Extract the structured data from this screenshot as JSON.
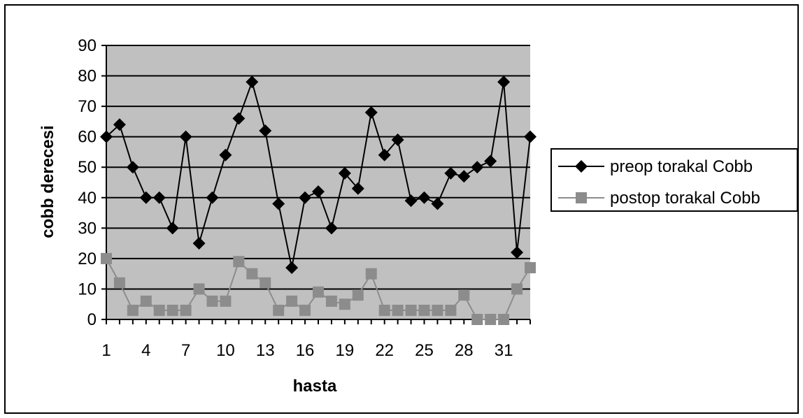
{
  "chart_data": {
    "type": "line",
    "title": "",
    "xlabel": "hasta",
    "ylabel": "cobb derecesi",
    "x": [
      1,
      2,
      3,
      4,
      5,
      6,
      7,
      8,
      9,
      10,
      11,
      12,
      13,
      14,
      15,
      16,
      17,
      18,
      19,
      20,
      21,
      22,
      23,
      24,
      25,
      26,
      27,
      28,
      29,
      30,
      31,
      32,
      33
    ],
    "x_tick_labels": [
      "1",
      "4",
      "7",
      "10",
      "13",
      "16",
      "19",
      "22",
      "25",
      "28",
      "31"
    ],
    "y_tick_labels": [
      "0",
      "10",
      "20",
      "30",
      "40",
      "50",
      "60",
      "70",
      "80",
      "90"
    ],
    "ylim": [
      0,
      90
    ],
    "xlim": [
      1,
      33
    ],
    "grid": "horizontal major gridlines",
    "plot_background": "#c0c0c0",
    "legend_position": "right",
    "series": [
      {
        "name": "preop torakal Cobb",
        "color": "#000000",
        "marker": "diamond",
        "values": [
          60,
          64,
          50,
          40,
          40,
          30,
          60,
          25,
          40,
          54,
          66,
          78,
          62,
          38,
          17,
          40,
          42,
          30,
          48,
          43,
          68,
          54,
          59,
          39,
          40,
          38,
          48,
          47,
          50,
          52,
          78,
          22,
          60
        ]
      },
      {
        "name": "postop torakal Cobb",
        "color": "#8c8c8c",
        "marker": "square",
        "values": [
          20,
          12,
          3,
          6,
          3,
          3,
          3,
          10,
          6,
          6,
          19,
          15,
          12,
          3,
          6,
          3,
          9,
          6,
          5,
          8,
          15,
          3,
          3,
          3,
          3,
          3,
          3,
          8,
          0,
          0,
          0,
          10,
          17
        ]
      }
    ]
  }
}
